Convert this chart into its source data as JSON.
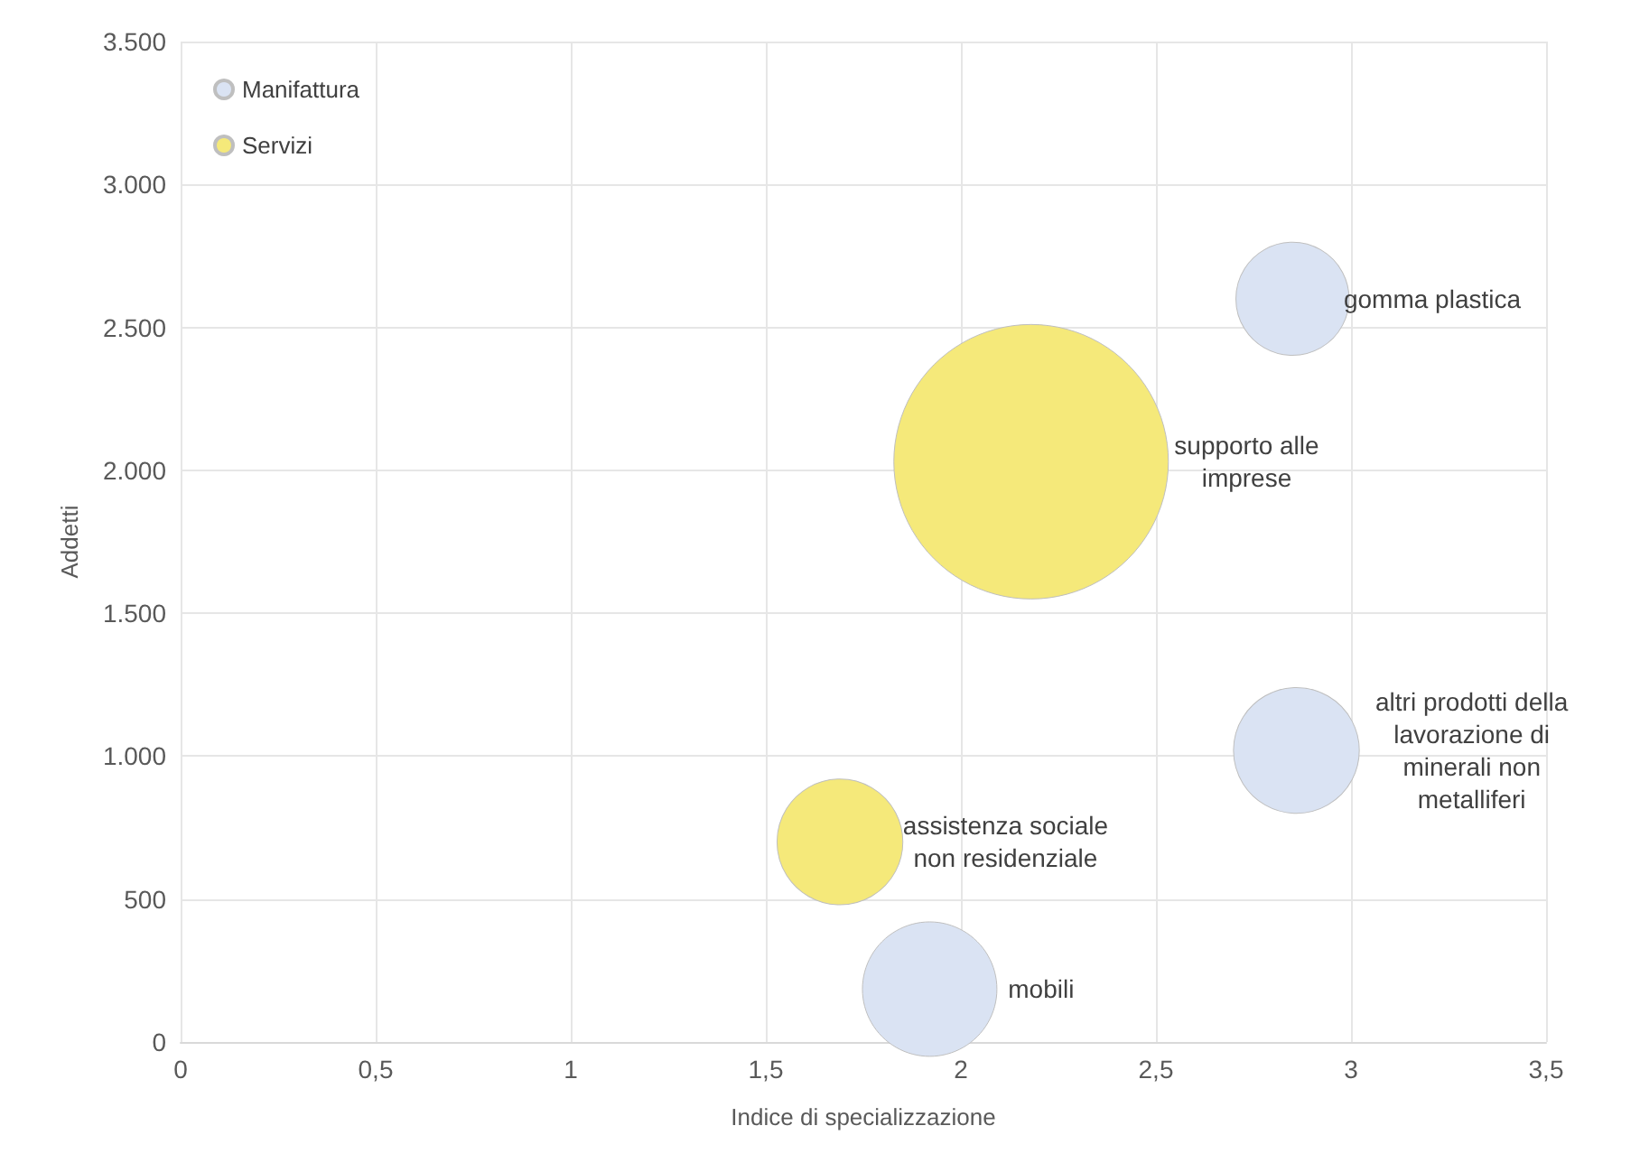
{
  "chart_data": {
    "type": "bubble",
    "xlabel": "Indice di specializzazione",
    "ylabel": "Addetti",
    "series": [
      {
        "name": "Manifattura",
        "color": "#dae3f3",
        "x": [
          2.85,
          2.86,
          1.92
        ],
        "values": [
          2600,
          1020,
          185
        ],
        "sizes": [
          0.17,
          0.21,
          0.24
        ],
        "value_labels": [
          "gomma plastica",
          "altri prodotti della\nlavorazione di\nminerali non\nmetalliferi",
          "mobili"
        ]
      },
      {
        "name": "Servizi",
        "color": "#f5e97a",
        "x": [
          2.18,
          1.69
        ],
        "values": [
          2030,
          700
        ],
        "sizes": [
          1,
          0.21
        ],
        "value_labels": [
          "supporto alle\nimprese",
          "assistenza sociale\nnon residenziale"
        ]
      }
    ],
    "xlim": [
      0,
      3.5
    ],
    "xticks": [
      0,
      {
        "value": 0.5,
        "label": "0,5"
      },
      1,
      {
        "value": 1.5,
        "label": "1,5"
      },
      2,
      {
        "value": 2.5,
        "label": "2,5"
      },
      3,
      {
        "value": 3.5,
        "label": "3,5"
      }
    ],
    "ylim": [
      0,
      3500
    ],
    "yticks": [
      0,
      500,
      {
        "value": 1000,
        "label": "1.000"
      },
      {
        "value": 1500,
        "label": "1.500"
      },
      {
        "value": 2000,
        "label": "2.000"
      },
      {
        "value": 2500,
        "label": "2.500"
      },
      {
        "value": 3000,
        "label": "3.000"
      },
      {
        "value": 3500,
        "label": "3.500"
      }
    ],
    "grid": true,
    "legend": "top left",
    "marker": "circle"
  }
}
